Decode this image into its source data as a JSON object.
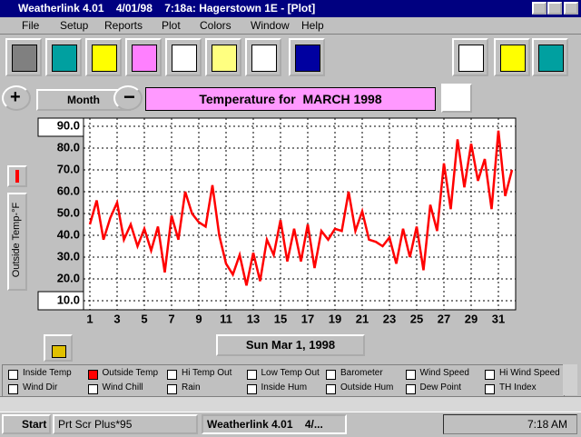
{
  "window": {
    "title": "Weatherlink 4.01    4/01/98    7:18a: Hagerstown 1E - [Plot]"
  },
  "menu": [
    "File",
    "Setup",
    "Reports",
    "Plot",
    "Colors",
    "Window",
    "Help"
  ],
  "controls": {
    "period": "Month",
    "date": "Sun Mar 1, 1998"
  },
  "chart_data": {
    "type": "line",
    "title": "Temperature for  MARCH 1998",
    "y_label": "Outside Temp-°F",
    "color": "#ff0000",
    "grid": true,
    "x": [
      1,
      1.5,
      2,
      2.5,
      3,
      3.5,
      4,
      4.5,
      5,
      5.5,
      6,
      6.5,
      7,
      7.5,
      8,
      8.5,
      9,
      9.5,
      10,
      10.5,
      11,
      11.5,
      12,
      12.5,
      13,
      13.5,
      14,
      14.5,
      15,
      15.5,
      16,
      16.5,
      17,
      17.5,
      18,
      18.5,
      19,
      19.5,
      20,
      20.5,
      21,
      21.5,
      22,
      22.5,
      23,
      23.5,
      24,
      24.5,
      25,
      25.5,
      26,
      26.5,
      27,
      27.5,
      28,
      28.5,
      29,
      29.5,
      30,
      30.5,
      31,
      31.5,
      32
    ],
    "values": [
      45,
      56,
      38,
      48,
      55,
      38,
      45,
      35,
      43,
      33,
      44,
      23,
      49,
      38,
      60,
      50,
      46,
      44,
      63,
      40,
      27,
      22,
      31,
      17,
      32,
      19,
      38,
      31,
      47,
      28,
      43,
      28,
      45,
      25,
      42,
      38,
      43,
      42,
      60,
      42,
      51,
      38,
      37,
      35,
      39,
      27,
      43,
      30,
      44,
      24,
      54,
      42,
      73,
      52,
      84,
      62,
      82,
      65,
      75,
      52,
      88,
      58,
      70
    ],
    "xlim": [
      1,
      32
    ],
    "xticks": [
      1,
      3,
      5,
      7,
      9,
      11,
      13,
      15,
      17,
      19,
      21,
      23,
      25,
      27,
      29,
      31
    ],
    "ylim": [
      10,
      90
    ],
    "yticks": [
      {
        "value": 10,
        "label": "10.0"
      },
      {
        "value": 20,
        "label": "20.0"
      },
      {
        "value": 30,
        "label": "30.0"
      },
      {
        "value": 40,
        "label": "40.0"
      },
      {
        "value": 50,
        "label": "50.0"
      },
      {
        "value": 60,
        "label": "60.0"
      },
      {
        "value": 70,
        "label": "70.0"
      },
      {
        "value": 80,
        "label": "80.0"
      },
      {
        "value": 90,
        "label": "90.0"
      }
    ]
  },
  "checkboxes": [
    {
      "label": "Inside Temp",
      "checked": false
    },
    {
      "label": "Outside Temp",
      "checked": true
    },
    {
      "label": "Hi Temp Out",
      "checked": false
    },
    {
      "label": "Low Temp Out",
      "checked": false
    },
    {
      "label": "Barometer",
      "checked": false
    },
    {
      "label": "Wind Speed",
      "checked": false
    },
    {
      "label": "Hi Wind Speed",
      "checked": false
    },
    {
      "label": "Wind Dir",
      "checked": false
    },
    {
      "label": "Wind Chill",
      "checked": false
    },
    {
      "label": "Rain",
      "checked": false
    },
    {
      "label": "Inside Hum",
      "checked": false
    },
    {
      "label": "Outside Hum",
      "checked": false
    },
    {
      "label": "Dew Point",
      "checked": false
    },
    {
      "label": "TH Index",
      "checked": false
    }
  ],
  "taskbar": {
    "start": "Start",
    "tasks": [
      "Prt Scr Plus*95",
      "Weatherlink 4.01    4/..."
    ],
    "clock": "7:18 AM"
  }
}
